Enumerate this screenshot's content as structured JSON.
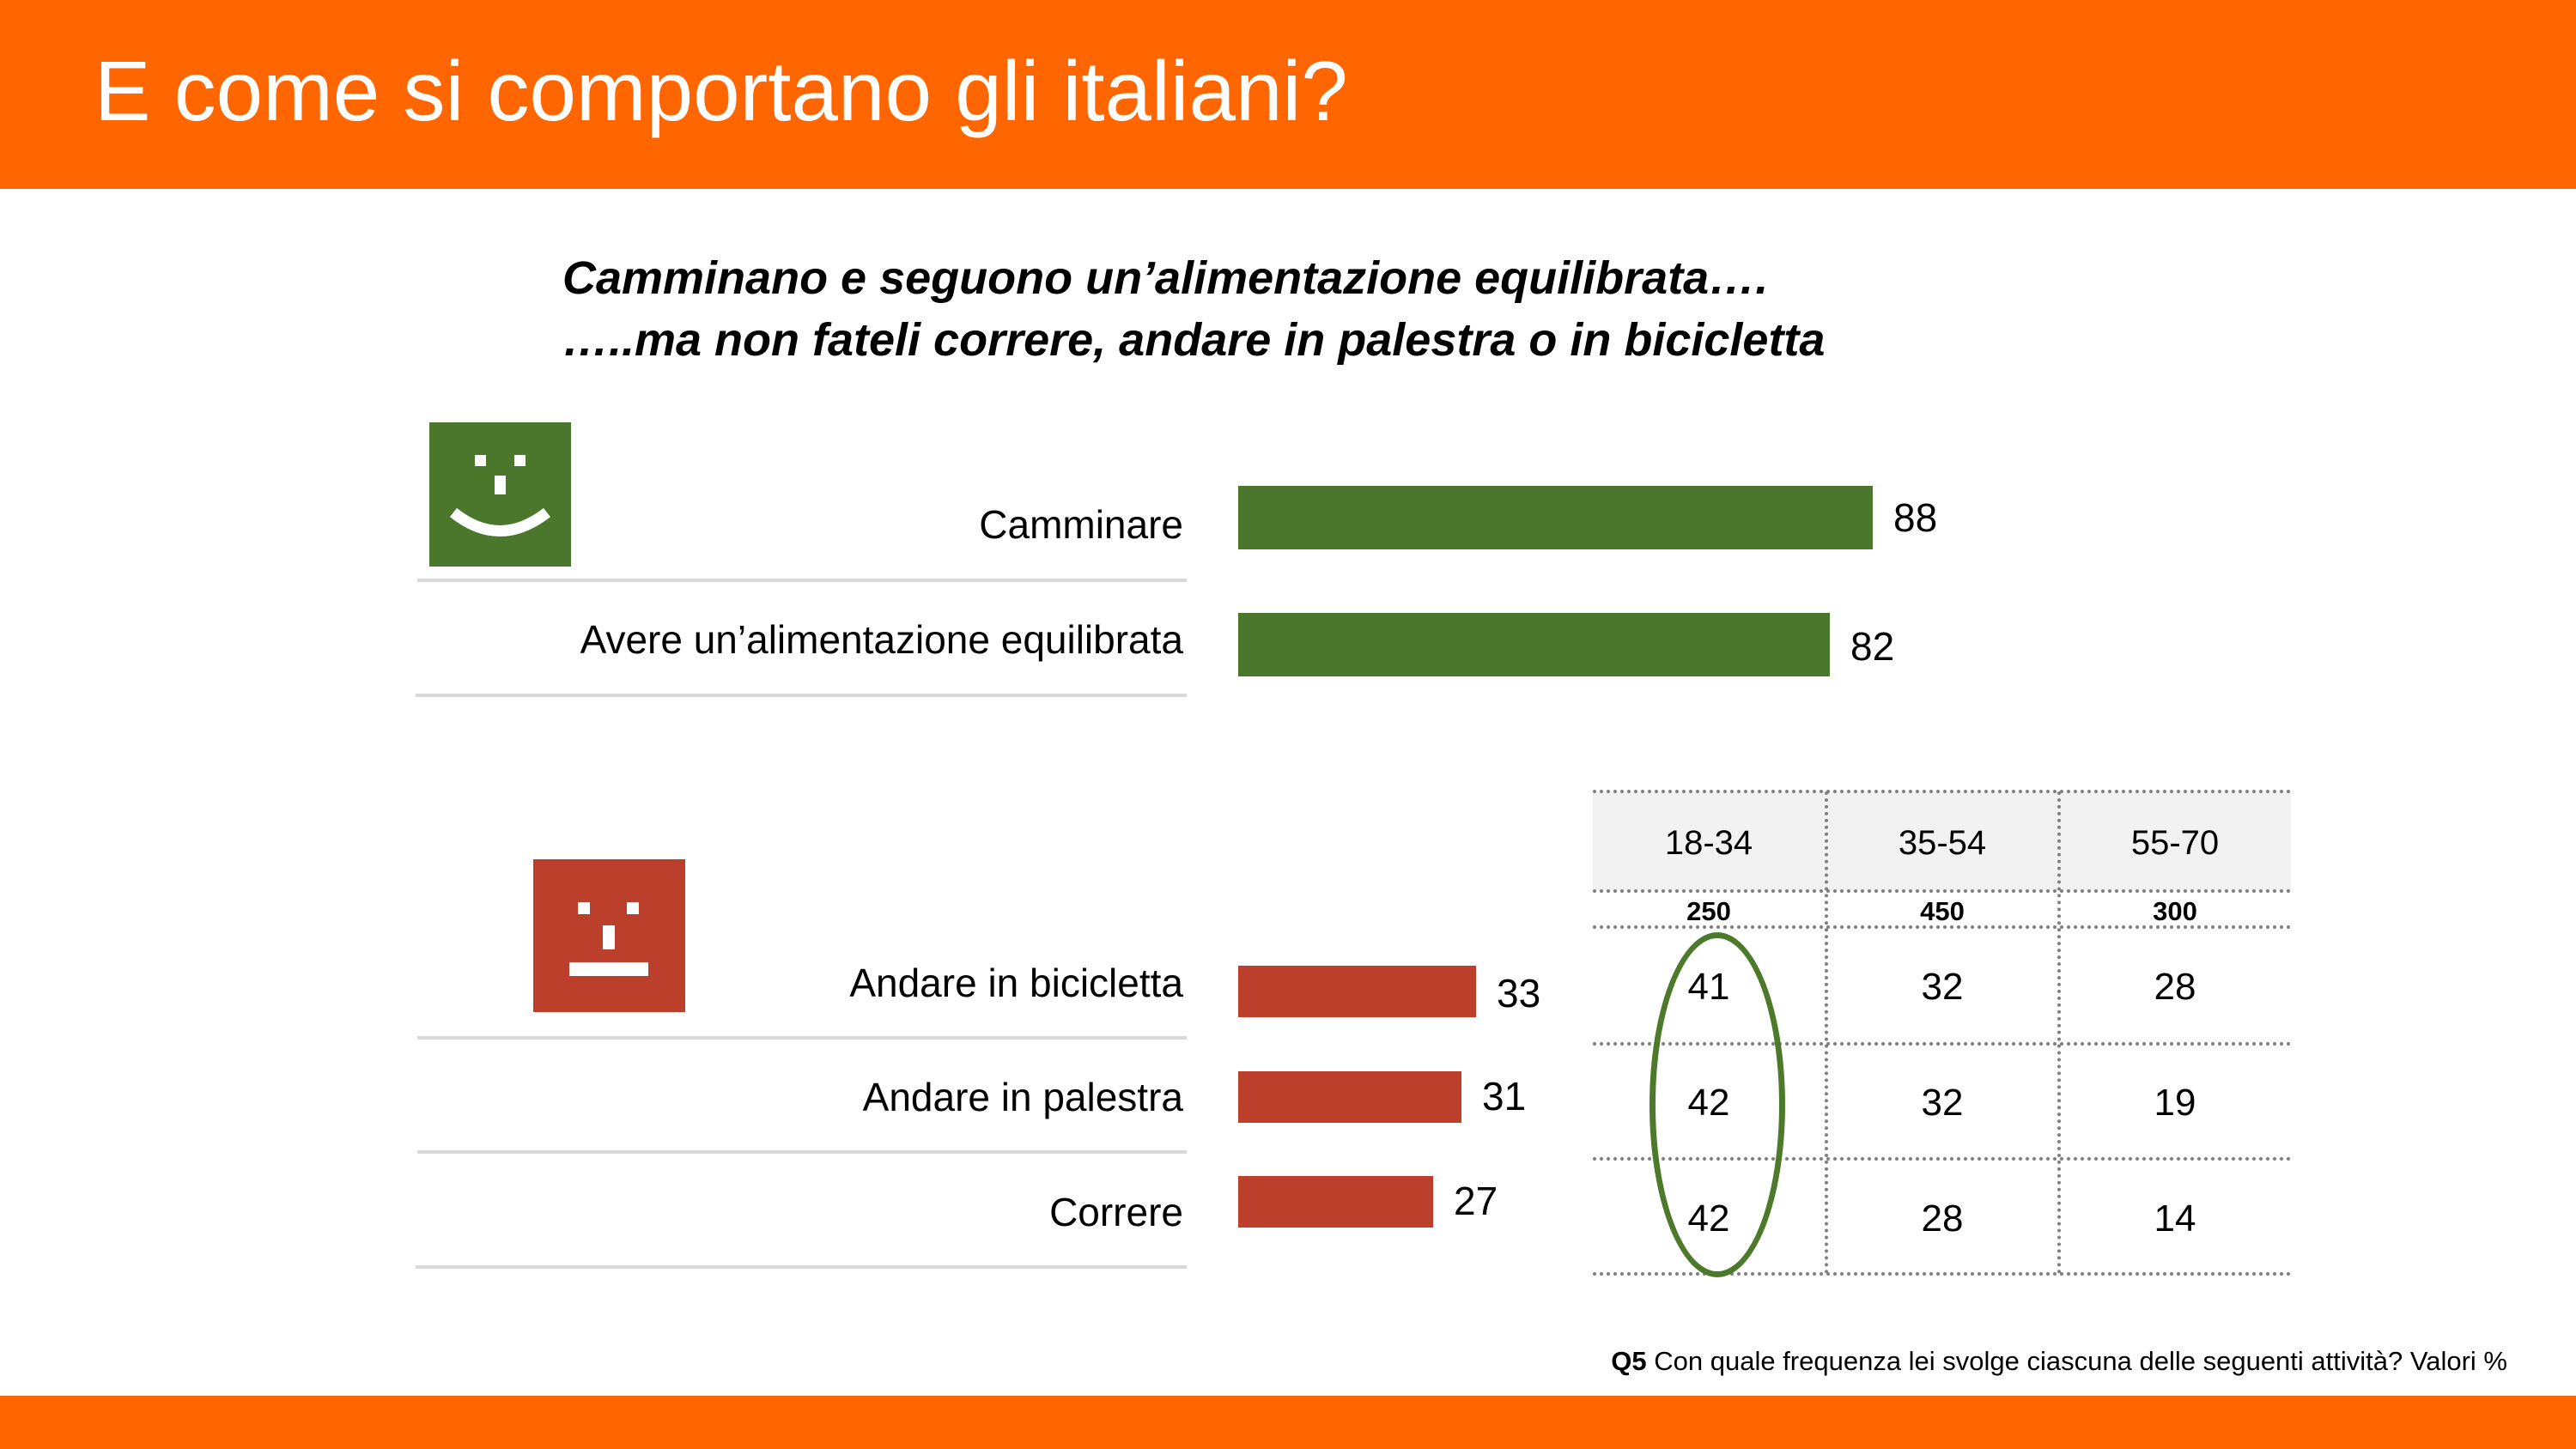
{
  "title": "E come si comportano gli italiani?",
  "subtitle": {
    "line1": "Camminano e seguono un’alimentazione equilibrata….",
    "line2": "…..ma non fateli correre, andare in palestra o in bicicletta"
  },
  "colors": {
    "header": "#ff6600",
    "positive": "#4a772b",
    "negative": "#bc3f2b",
    "highlight": "#4d7a2a"
  },
  "icons": {
    "positive": "smiley-face-icon",
    "negative": "neutral-face-icon"
  },
  "chart_data": [
    {
      "type": "bar",
      "orientation": "horizontal",
      "group": "positive",
      "categories": [
        "Camminare",
        "Avere un’alimentazione equilibrata"
      ],
      "values": [
        88,
        82
      ]
    },
    {
      "type": "bar",
      "orientation": "horizontal",
      "group": "negative",
      "categories": [
        "Andare in bicicletta",
        "Andare in palestra",
        "Correre"
      ],
      "values": [
        33,
        31,
        27
      ]
    },
    {
      "type": "table",
      "columns": [
        "18-34",
        "35-54",
        "55-70"
      ],
      "base": [
        "250",
        "450",
        "300"
      ],
      "rows": [
        {
          "activity": "Andare in bicicletta",
          "values": [
            "41",
            "32",
            "28"
          ]
        },
        {
          "activity": "Andare in palestra",
          "values": [
            "42",
            "32",
            "19"
          ]
        },
        {
          "activity": "Correre",
          "values": [
            "42",
            "28",
            "14"
          ]
        }
      ],
      "highlighted_column": "18-34"
    }
  ],
  "footnote": {
    "code": "Q5",
    "text": "Con quale frequenza lei svolge ciascuna delle seguenti attività? Valori %"
  }
}
